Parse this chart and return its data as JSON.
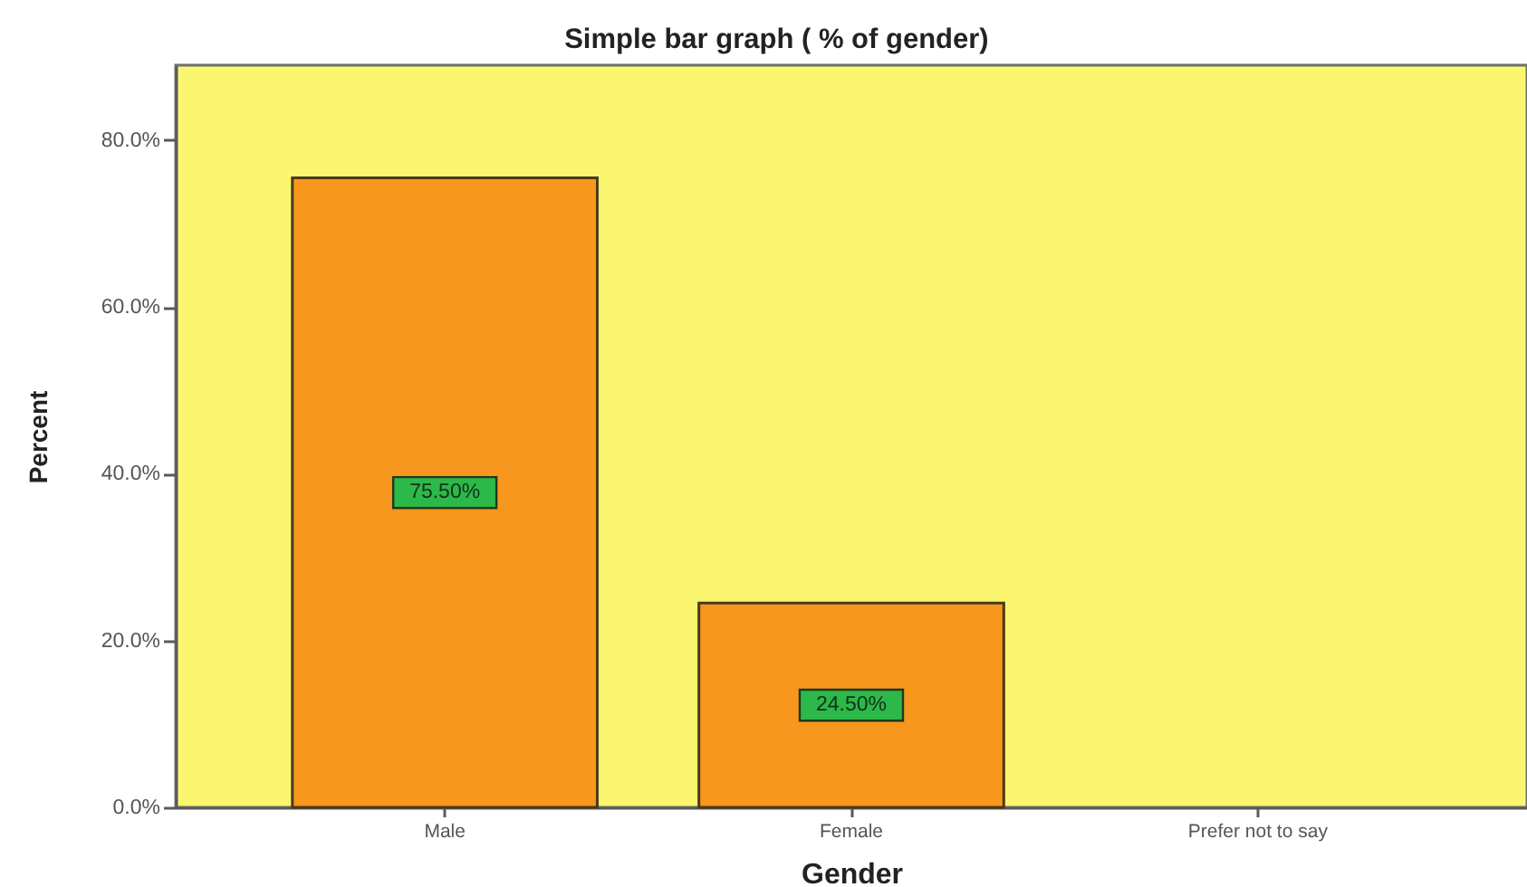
{
  "chart_data": {
    "type": "bar",
    "title": "Simple bar graph ( % of gender)",
    "xlabel": "Gender",
    "ylabel": "Percent",
    "categories": [
      "Male",
      "Female",
      "Prefer not to say"
    ],
    "values": [
      75.5,
      24.5,
      null
    ],
    "color": "#f7971e",
    "value_labels": [
      "75.50%",
      "24.50%",
      null
    ],
    "ylim": [
      0,
      89
    ],
    "yticks": [
      {
        "value": 0,
        "label": "0.0%"
      },
      {
        "value": 20,
        "label": "20.0%"
      },
      {
        "value": 40,
        "label": "40.0%"
      },
      {
        "value": 60,
        "label": "60.0%"
      },
      {
        "value": 80,
        "label": "80.0%"
      }
    ],
    "grid": false
  }
}
